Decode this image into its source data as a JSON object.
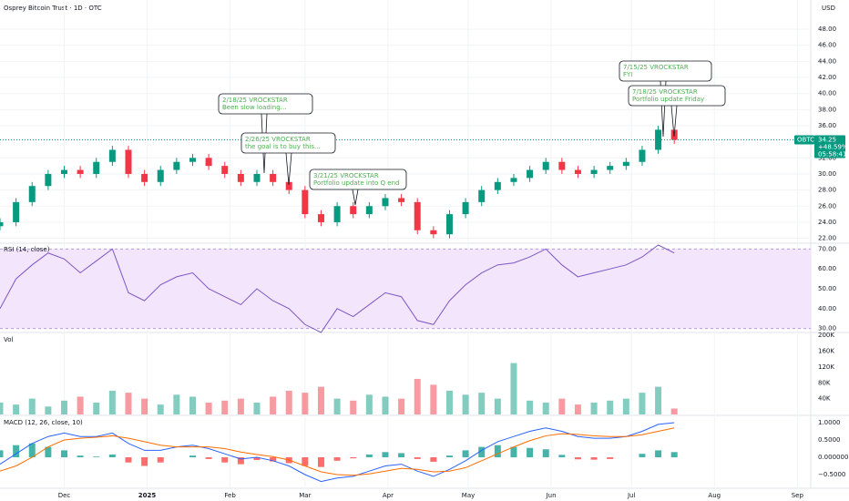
{
  "chart_data": {
    "type": "candlestick",
    "title": "Osprey Bitcoin Trust · 1D · OTC",
    "currency": "USD",
    "symbol": "OBTC",
    "last_price": 34.25,
    "last_price_label": "34.25",
    "change_label": "+48.59%",
    "countdown": "05:58:41",
    "up_color": "#089981",
    "down_color": "#f23645",
    "xlim": [
      0,
      303
    ],
    "xticks": [
      {
        "value": 24,
        "label": "Dec"
      },
      {
        "value": 55,
        "label": "2025"
      },
      {
        "value": 86,
        "label": "Feb"
      },
      {
        "value": 114,
        "label": "Mar"
      },
      {
        "value": 145,
        "label": "Apr"
      },
      {
        "value": 175,
        "label": "May"
      },
      {
        "value": 206,
        "label": "Jun"
      },
      {
        "value": 236,
        "label": "Jul"
      },
      {
        "value": 267,
        "label": "Aug"
      },
      {
        "value": 298,
        "label": "Sep"
      }
    ],
    "x": [
      0,
      6,
      12,
      18,
      24,
      30,
      36,
      42,
      48,
      54,
      60,
      66,
      72,
      78,
      84,
      90,
      96,
      102,
      108,
      114,
      120,
      126,
      132,
      138,
      144,
      150,
      156,
      162,
      168,
      174,
      180,
      186,
      192,
      198,
      204,
      210,
      216,
      222,
      228,
      234,
      240,
      246,
      252
    ],
    "open": [
      23.5,
      24,
      26.5,
      28.5,
      30,
      30.5,
      30,
      31.5,
      33,
      30,
      29,
      30.5,
      31.5,
      32,
      31,
      30,
      29,
      30,
      29,
      28,
      25,
      24,
      26,
      25,
      26,
      27,
      26.5,
      23,
      22.5,
      25,
      26.5,
      28,
      29,
      29.5,
      30.5,
      31.5,
      30.5,
      30,
      30.5,
      31,
      31.5,
      33,
      35.5
    ],
    "high": [
      24.5,
      27,
      29,
      30.5,
      31,
      31,
      32,
      33.5,
      33.5,
      30.5,
      31,
      32,
      32.5,
      32.5,
      31.5,
      30.5,
      30.5,
      30.5,
      29.5,
      28.5,
      25.5,
      26.5,
      26.5,
      26.5,
      27.5,
      27.5,
      27,
      23.5,
      25.5,
      27,
      28.5,
      29.5,
      30,
      31,
      32,
      32,
      31,
      31,
      31.5,
      32,
      33.5,
      36,
      36
    ],
    "low": [
      23,
      23.5,
      26,
      28,
      29.5,
      29.5,
      29.5,
      31,
      29.5,
      28.5,
      28.5,
      30,
      31,
      30.5,
      29.5,
      28.5,
      28.5,
      28.5,
      27.5,
      24.5,
      23.5,
      23.5,
      24.5,
      24.5,
      25.5,
      26,
      22.5,
      22,
      22,
      24.5,
      26,
      27.5,
      28.5,
      29,
      30,
      30,
      29.5,
      29.5,
      30,
      30.5,
      31,
      32.5,
      33.75
    ],
    "close": [
      24,
      26.5,
      28.5,
      30,
      30.5,
      30,
      31.5,
      33,
      30,
      29,
      30.5,
      31.5,
      32,
      31,
      30,
      29,
      30,
      29,
      28,
      25,
      24,
      26,
      25,
      26,
      27,
      26.5,
      23,
      22.5,
      25,
      26.5,
      28,
      29,
      29.5,
      30.5,
      31.5,
      30.5,
      30,
      30.5,
      31,
      31.5,
      33,
      35.5,
      34.25
    ],
    "ylim": [
      21.5,
      50.5
    ],
    "yticks": [
      {
        "value": 22,
        "label": "22.00"
      },
      {
        "value": 24,
        "label": "24.00"
      },
      {
        "value": 26,
        "label": "26.00"
      },
      {
        "value": 28,
        "label": "28.00"
      },
      {
        "value": 30,
        "label": "30.00"
      },
      {
        "value": 32,
        "label": "32.00"
      },
      {
        "value": 36,
        "label": "36.00"
      },
      {
        "value": 38,
        "label": "38.00"
      },
      {
        "value": 40,
        "label": "40.00"
      },
      {
        "value": 42,
        "label": "42.00"
      },
      {
        "value": 44,
        "label": "44.00"
      },
      {
        "value": 46,
        "label": "46.00"
      },
      {
        "value": 48,
        "label": "48.00"
      }
    ],
    "annotations": [
      {
        "title": "2/18/25 VROCKSTAR",
        "text": "Been slow loading..."
      },
      {
        "title": "2/26/25 VROCKSTAR",
        "text": "the goal is to buy this..."
      },
      {
        "title": "3/21/25 VROCKSTAR",
        "text": "Portfolio update into Q end"
      },
      {
        "title": "7/15/25 VROCKSTAR",
        "text": "FYI"
      },
      {
        "title": "7/18/25 VROCKSTAR",
        "text": "Portfolio update Friday"
      }
    ],
    "rsi": {
      "label": "RSI (14, close)",
      "color": "#7e57c2",
      "band_color": "#f3e5fc",
      "values": [
        40,
        55,
        62,
        68,
        65,
        58,
        64,
        70,
        48,
        44,
        52,
        56,
        58,
        50,
        46,
        42,
        50,
        44,
        40,
        32,
        28,
        40,
        36,
        42,
        48,
        46,
        34,
        32,
        44,
        52,
        58,
        62,
        63,
        66,
        70,
        62,
        56,
        58,
        60,
        62,
        66,
        72,
        68
      ],
      "band": [
        30,
        70
      ],
      "ylim": [
        28,
        72
      ],
      "yticks": [
        {
          "value": 30,
          "label": "30.00"
        },
        {
          "value": 40,
          "label": "40.00"
        },
        {
          "value": 50,
          "label": "50.00"
        },
        {
          "value": 60,
          "label": "60.00"
        },
        {
          "value": 70,
          "label": "70.00"
        }
      ]
    },
    "volume": {
      "label": "Vol",
      "values": [
        30000,
        25000,
        40000,
        20000,
        35000,
        45000,
        30000,
        60000,
        55000,
        40000,
        25000,
        50000,
        45000,
        30000,
        35000,
        40000,
        30000,
        45000,
        60000,
        55000,
        70000,
        40000,
        35000,
        50000,
        45000,
        40000,
        90000,
        75000,
        60000,
        50000,
        55000,
        40000,
        130000,
        35000,
        30000,
        40000,
        25000,
        30000,
        35000,
        40000,
        55000,
        70000,
        15000
      ],
      "ylim": [
        0,
        205000
      ],
      "yticks": [
        {
          "value": 40000,
          "label": "40K"
        },
        {
          "value": 80000,
          "label": "80K"
        },
        {
          "value": 120000,
          "label": "120K"
        },
        {
          "value": 160000,
          "label": "160K"
        },
        {
          "value": 200000,
          "label": "200K"
        }
      ]
    },
    "macd": {
      "label": "MACD (12, 26, close, 10)",
      "macd_color": "#2962ff",
      "signal_color": "#ff6d00",
      "macd": [
        -0.2,
        0.1,
        0.4,
        0.6,
        0.7,
        0.6,
        0.6,
        0.7,
        0.4,
        0.2,
        0.2,
        0.3,
        0.35,
        0.25,
        0.1,
        -0.05,
        0,
        -0.1,
        -0.25,
        -0.5,
        -0.7,
        -0.6,
        -0.55,
        -0.4,
        -0.25,
        -0.2,
        -0.4,
        -0.55,
        -0.35,
        -0.1,
        0.2,
        0.45,
        0.6,
        0.75,
        0.85,
        0.75,
        0.6,
        0.55,
        0.55,
        0.6,
        0.75,
        0.95,
        1.0
      ],
      "signal": [
        -0.4,
        -0.25,
        0,
        0.3,
        0.5,
        0.55,
        0.58,
        0.62,
        0.55,
        0.45,
        0.35,
        0.3,
        0.3,
        0.3,
        0.25,
        0.15,
        0.08,
        0.02,
        -0.08,
        -0.25,
        -0.42,
        -0.5,
        -0.52,
        -0.48,
        -0.4,
        -0.32,
        -0.35,
        -0.42,
        -0.4,
        -0.3,
        -0.1,
        0.1,
        0.3,
        0.48,
        0.62,
        0.68,
        0.66,
        0.62,
        0.6,
        0.6,
        0.65,
        0.75,
        0.85
      ],
      "histogram": [
        0.2,
        0.35,
        0.4,
        0.3,
        0.2,
        0.05,
        0.02,
        0.08,
        -0.15,
        -0.25,
        -0.15,
        0,
        0.05,
        -0.05,
        -0.15,
        -0.2,
        -0.08,
        -0.12,
        -0.17,
        -0.25,
        -0.28,
        -0.1,
        -0.03,
        0.08,
        0.15,
        0.12,
        -0.05,
        -0.13,
        0.05,
        0.2,
        0.3,
        0.35,
        0.3,
        0.27,
        0.23,
        0.07,
        -0.06,
        -0.07,
        -0.05,
        0,
        0.1,
        0.2,
        0.15
      ],
      "ylim": [
        -0.85,
        1.15
      ],
      "yticks": [
        {
          "value": 1,
          "label": "1.0000"
        },
        {
          "value": 0.5,
          "label": "0.5000"
        },
        {
          "value": 0,
          "label": "0.000000"
        },
        {
          "value": -0.5,
          "label": "−0.5000"
        }
      ]
    }
  }
}
